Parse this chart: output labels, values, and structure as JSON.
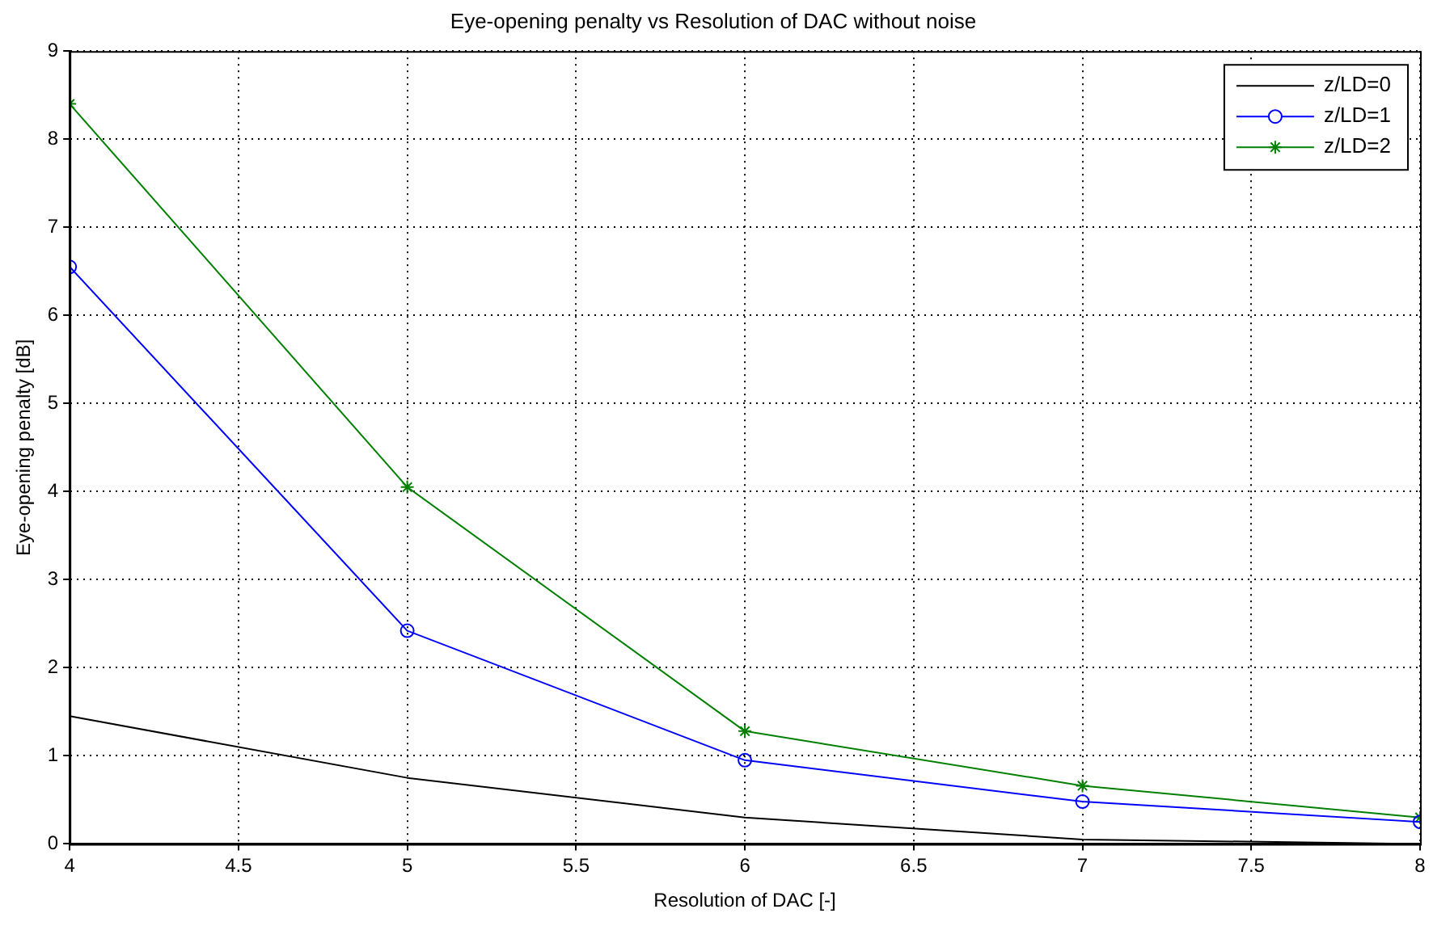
{
  "chart_data": {
    "type": "line",
    "title": "Eye-opening penalty vs Resolution of DAC without noise",
    "xlabel": "Resolution of DAC [-]",
    "ylabel": "Eye-opening penalty [dB]",
    "x": [
      4,
      5,
      6,
      7,
      8
    ],
    "series": [
      {
        "name": "z/LD=0",
        "color": "#000000",
        "marker": "none",
        "values": [
          1.45,
          0.75,
          0.3,
          0.05,
          0
        ]
      },
      {
        "name": "z/LD=1",
        "color": "#0000ff",
        "marker": "circle",
        "values": [
          6.55,
          2.42,
          0.95,
          0.48,
          0.25
        ]
      },
      {
        "name": "z/LD=2",
        "color": "#008000",
        "marker": "cross",
        "values": [
          8.4,
          4.05,
          1.28,
          0.66,
          0.3
        ]
      }
    ],
    "xlim": [
      4,
      8
    ],
    "xticks": [
      4,
      4.5,
      5,
      5.5,
      6,
      6.5,
      7,
      7.5,
      8
    ],
    "ylim": [
      0,
      9
    ],
    "yticks": [
      0,
      1,
      2,
      3,
      4,
      5,
      6,
      7,
      8,
      9
    ],
    "grid": true,
    "legend": "top right"
  }
}
